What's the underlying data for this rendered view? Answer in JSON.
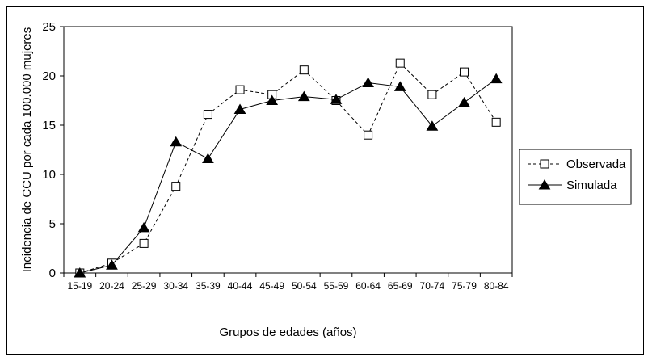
{
  "chart_data": {
    "type": "line",
    "categories": [
      "15-19",
      "20-24",
      "25-29",
      "30-34",
      "35-39",
      "40-44",
      "45-49",
      "50-54",
      "55-59",
      "60-64",
      "65-69",
      "70-74",
      "75-79",
      "80-84"
    ],
    "series": [
      {
        "name": "Observada",
        "line_style": "dashed",
        "marker": "open-square",
        "values": [
          0,
          1,
          3,
          8.8,
          16.1,
          18.6,
          18.1,
          20.6,
          17.5,
          14,
          21.3,
          18.1,
          20.4,
          15.3
        ]
      },
      {
        "name": "Simulada",
        "line_style": "solid",
        "marker": "filled-triangle",
        "values": [
          0,
          0.8,
          4.6,
          13.3,
          11.6,
          16.6,
          17.5,
          17.9,
          17.6,
          19.3,
          18.9,
          14.9,
          17.3,
          19.7
        ]
      }
    ],
    "title": "",
    "xlabel": "Grupos de edades (años)",
    "ylabel": "Incidencia de CCU por cada 100.000 mujeres",
    "ylim": [
      0,
      25
    ],
    "yticks": [
      0,
      5,
      10,
      15,
      20,
      25
    ],
    "grid": false,
    "legend_position": "right"
  }
}
